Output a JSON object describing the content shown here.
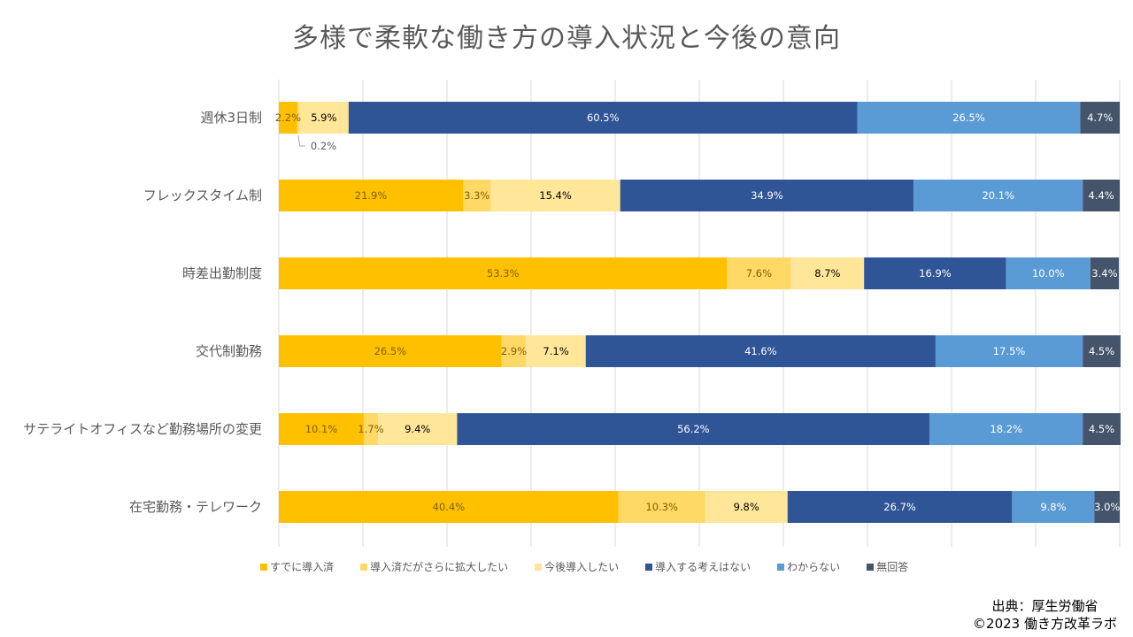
{
  "chart_data": {
    "type": "bar",
    "orientation": "horizontal",
    "stacked": "100%",
    "title": "多様で柔軟な働き方の導入状況と今後の意向",
    "xlabel": "",
    "ylabel": "",
    "xlim": [
      0,
      100
    ],
    "grid": true,
    "legend_position": "bottom",
    "categories": [
      "週休3日制",
      "フレックスタイム制",
      "時差出勤制度",
      "交代制勤務",
      "サテライトオフィスなど勤務場所の変更",
      "在宅勤務・テレワーク"
    ],
    "series": [
      {
        "name": "すでに導入済",
        "color": "#FFC000",
        "label_color": "#7F6000",
        "values": [
          2.2,
          21.9,
          53.3,
          26.5,
          10.1,
          40.4
        ]
      },
      {
        "name": "導入済だがさらに拡大したい",
        "color": "#FFD966",
        "label_color": "#7F6000",
        "values": [
          0.2,
          3.3,
          7.6,
          2.9,
          1.7,
          10.3
        ]
      },
      {
        "name": "今後導入したい",
        "color": "#FFE699",
        "label_color": "#000000",
        "values": [
          5.9,
          15.4,
          8.7,
          7.1,
          9.4,
          9.8
        ]
      },
      {
        "name": "導入する考えはない",
        "color": "#2F5597",
        "label_color": "#FFFFFF",
        "values": [
          60.5,
          34.9,
          16.9,
          41.6,
          56.2,
          26.7
        ]
      },
      {
        "name": "わからない",
        "color": "#5B9BD5",
        "label_color": "#FFFFFF",
        "values": [
          26.5,
          20.1,
          10.0,
          17.5,
          18.2,
          9.8
        ]
      },
      {
        "name": "無回答",
        "color": "#44546A",
        "label_color": "#FFFFFF",
        "values": [
          4.7,
          4.4,
          3.4,
          4.5,
          4.5,
          3.0
        ]
      }
    ],
    "annotations": [
      {
        "category": "週休3日制",
        "series": "導入済だがさらに拡大したい",
        "text": "0.2%",
        "callout": true
      }
    ]
  },
  "source": {
    "line1": "出典：厚生労働省",
    "line2": "©2023 働き方改革ラボ"
  }
}
